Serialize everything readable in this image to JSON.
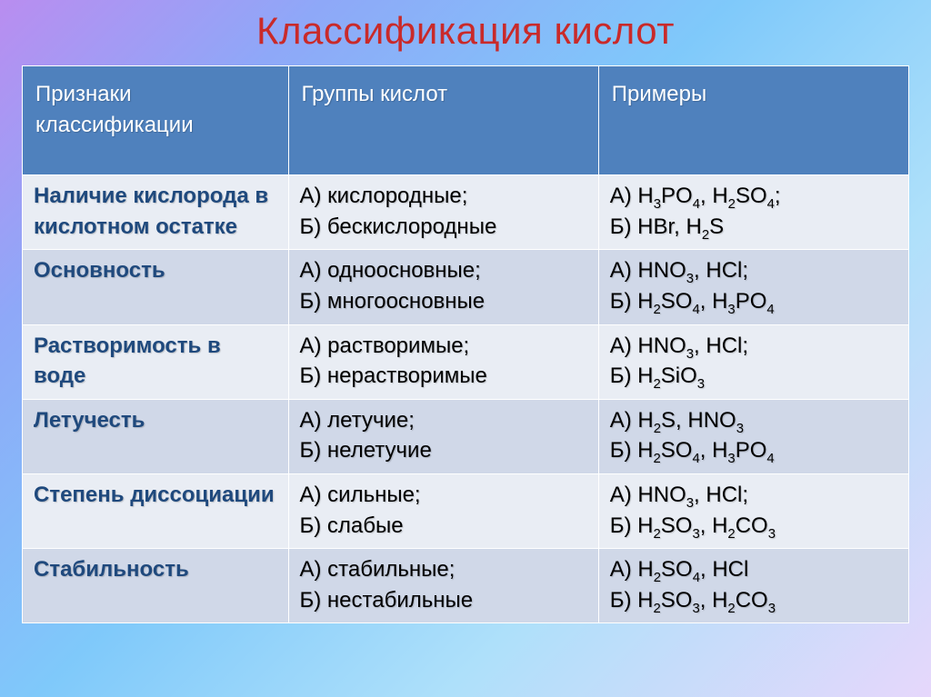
{
  "title": "Классификация кислот",
  "headers": [
    "Признаки классификации",
    "Группы кислот",
    "Примеры"
  ],
  "rows": [
    {
      "criterion": "  Наличие кислорода в кислотном остатке",
      "groups": [
        "А) кислородные;",
        "Б) бескислородные"
      ],
      "examples": [
        {
          "prefix": "А) ",
          "formulas": [
            [
              "H",
              3,
              "PO",
              4
            ],
            [
              "H",
              2,
              "SO",
              4
            ]
          ],
          "suffix": ";"
        },
        {
          "prefix": " Б) ",
          "formulas": [
            [
              "HBr"
            ],
            [
              "H",
              2,
              "S"
            ]
          ]
        }
      ]
    },
    {
      "criterion": "Основность",
      "groups": [
        "А) одноосновные;",
        "Б) многоосновные"
      ],
      "examples": [
        {
          "prefix": "А) ",
          "formulas": [
            [
              "HNO",
              3
            ],
            [
              "HCl"
            ]
          ],
          "suffix": ";"
        },
        {
          "prefix": "Б) ",
          "formulas": [
            [
              "H",
              2,
              "SO",
              4
            ],
            [
              "H",
              3,
              "PO",
              4
            ]
          ]
        }
      ]
    },
    {
      "criterion": "Растворимость в воде",
      "groups": [
        "А) растворимые;",
        "Б) нерастворимые"
      ],
      "examples": [
        {
          "prefix": "А) ",
          "formulas": [
            [
              "HNO",
              3
            ],
            [
              "HCl"
            ]
          ],
          "suffix": ";"
        },
        {
          "prefix": "Б) ",
          "formulas": [
            [
              "H",
              2,
              "SiO",
              3
            ]
          ]
        }
      ]
    },
    {
      "criterion": "Летучесть",
      "groups": [
        "А) летучие;",
        "Б) нелетучие"
      ],
      "examples": [
        {
          "prefix": "А) ",
          "formulas": [
            [
              "H",
              2,
              "S"
            ],
            [
              "HNO",
              3
            ]
          ]
        },
        {
          "prefix": "Б) ",
          "formulas": [
            [
              "H",
              2,
              "SO",
              4
            ],
            [
              "H",
              3,
              "PO",
              4
            ]
          ]
        }
      ]
    },
    {
      "criterion": "Степень диссоциации",
      "groups": [
        "А) сильные;",
        "Б) слабые"
      ],
      "examples": [
        {
          "prefix": "А) ",
          "formulas": [
            [
              "HNO",
              3
            ],
            [
              "HCl"
            ]
          ],
          "suffix": ";"
        },
        {
          "prefix": "Б) ",
          "formulas": [
            [
              "H",
              2,
              "SO",
              3
            ],
            [
              "H",
              2,
              "CO",
              3
            ]
          ]
        }
      ]
    },
    {
      "criterion": "Стабильность",
      "groups": [
        "А) стабильные;",
        "Б) нестабильные"
      ],
      "examples": [
        {
          "prefix": "А) ",
          "formulas": [
            [
              "H",
              2,
              "SO",
              4
            ],
            [
              "HCl"
            ]
          ]
        },
        {
          "prefix": "Б) ",
          "formulas": [
            [
              "H",
              2,
              "SO",
              3
            ],
            [
              "H",
              2,
              "CO",
              3
            ]
          ]
        }
      ]
    }
  ],
  "style": {
    "title_color": "#c92a2a",
    "header_bg": "#4f81bd",
    "header_fg": "#ffffff",
    "row_odd_bg": "#e9edf4",
    "row_even_bg": "#d0d8e8",
    "criterion_color": "#1f497d",
    "font_size_body": 24,
    "font_size_title": 42
  }
}
